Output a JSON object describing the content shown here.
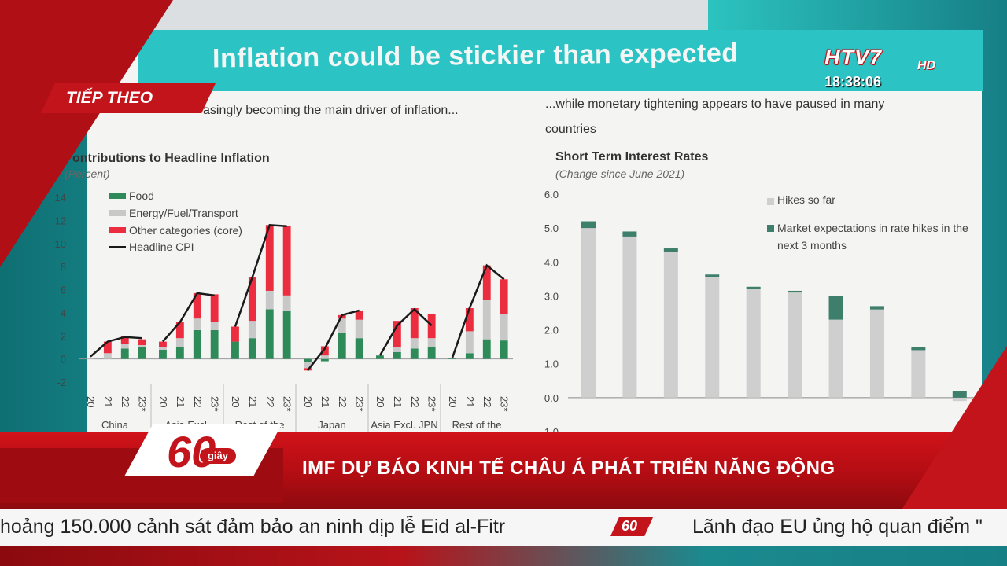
{
  "slide": {
    "title": "Inflation could be stickier than expected",
    "left_subtitle": "asingly becoming the main driver of inflation...",
    "right_subtitle_1": "...while monetary tightening appears to have paused in many",
    "right_subtitle_2": "countries"
  },
  "overlay": {
    "tiep_theo": "TIẾP THEO",
    "channel_logo": "HTV7",
    "channel_hd": "HD",
    "clock": "18:38:06",
    "program_number": "60",
    "program_unit": "giây",
    "headline": "IMF DỰ BÁO KINH TẾ CHÂU Á PHÁT TRIỂN NĂNG ĐỘNG",
    "ticker_1": "hoảng 150.000 cảnh sát đảm bảo an ninh dịp lễ Eid al-Fitr",
    "ticker_logo": "60",
    "ticker_2": "Lãnh đạo EU ủng hộ quan điểm \""
  },
  "colors": {
    "food": "#2f8a5a",
    "energy": "#c8c8c8",
    "core": "#ec2d3f",
    "headline_line": "#1a1a1a",
    "hikes": "#cfcfcf",
    "expectations": "#3e7f6c",
    "brand_red": "#c4141b"
  },
  "chart_data": [
    {
      "type": "bar",
      "stacked": true,
      "title": "ontributions to Headline Inflation",
      "unit": "(Percent)",
      "ylim": [
        -2,
        14
      ],
      "yticks": [
        "14",
        "12",
        "10",
        "8",
        "6",
        "4",
        "2",
        "0",
        "-2"
      ],
      "legend": [
        "Food",
        "Energy/Fuel/Transport",
        "Other categories (core)",
        "Headline CPI"
      ],
      "groups": [
        {
          "label": "China",
          "years": [
            "20",
            "21",
            "22",
            "23*"
          ],
          "food": [
            0.0,
            0.0,
            0.9,
            1.0
          ],
          "energy": [
            0.1,
            0.5,
            0.4,
            0.2
          ],
          "core": [
            0.0,
            1.0,
            0.7,
            0.5
          ],
          "headline": [
            0.2,
            1.5,
            1.9,
            1.8
          ]
        },
        {
          "label": "Asia Excl.",
          "years": [
            "20",
            "21",
            "22",
            "23*"
          ],
          "food": [
            0.8,
            1.0,
            2.5,
            2.5
          ],
          "energy": [
            0.2,
            0.8,
            1.0,
            0.7
          ],
          "core": [
            0.5,
            1.4,
            2.2,
            2.4
          ],
          "headline": [
            1.5,
            3.2,
            5.7,
            5.5
          ]
        },
        {
          "label": "Rest of the",
          "years": [
            "20",
            "21",
            "22",
            "23*"
          ],
          "food": [
            1.5,
            1.8,
            4.3,
            4.2
          ],
          "energy": [
            0.0,
            1.5,
            1.6,
            1.3
          ],
          "core": [
            1.3,
            3.8,
            5.7,
            6.0
          ],
          "headline": [
            2.8,
            7.1,
            11.6,
            11.5
          ]
        },
        {
          "label": "Japan",
          "years": [
            "20",
            "21",
            "22",
            "23*"
          ],
          "food": [
            -0.3,
            -0.2,
            2.3,
            1.8
          ],
          "energy": [
            -0.5,
            0.3,
            1.2,
            1.6
          ],
          "core": [
            -0.2,
            0.8,
            0.3,
            0.8
          ],
          "headline": [
            -1.0,
            0.9,
            3.8,
            4.2
          ]
        },
        {
          "label": "Asia Excl. JPN",
          "years": [
            "20",
            "21",
            "22",
            "23*"
          ],
          "food": [
            0.3,
            0.6,
            0.9,
            1.0
          ],
          "energy": [
            0.0,
            0.4,
            0.9,
            0.8
          ],
          "core": [
            0.0,
            2.3,
            2.6,
            2.1
          ],
          "headline": [
            0.3,
            2.9,
            4.3,
            2.9
          ]
        },
        {
          "label": "Rest of the",
          "years": [
            "20",
            "21",
            "22",
            "23*"
          ],
          "food": [
            0.1,
            0.5,
            1.7,
            1.6
          ],
          "energy": [
            0.0,
            1.9,
            3.4,
            2.3
          ],
          "core": [
            0.0,
            2.0,
            3.0,
            3.0
          ],
          "headline": [
            0.1,
            4.4,
            8.1,
            6.9
          ]
        }
      ]
    },
    {
      "type": "bar",
      "stacked": true,
      "title": "Short Term Interest Rates",
      "unit": "(Change since June 2021)",
      "ylim": [
        -1.0,
        6.0
      ],
      "yticks": [
        "6.0",
        "5.0",
        "4.0",
        "3.0",
        "2.0",
        "1.0",
        "0.0",
        "-1.0"
      ],
      "legend": [
        "Hikes so far",
        "Market expectations in rate hikes in the next 3 months"
      ],
      "series": [
        {
          "name": "Hikes so far",
          "values": [
            5.0,
            4.75,
            4.3,
            3.55,
            3.2,
            3.1,
            2.3,
            2.6,
            1.4,
            -0.1
          ]
        },
        {
          "name": "Market expectations in rate hikes in the next 3 months",
          "values": [
            0.2,
            0.15,
            0.1,
            0.08,
            0.07,
            0.05,
            0.7,
            0.1,
            0.1,
            0.2
          ]
        }
      ]
    }
  ]
}
